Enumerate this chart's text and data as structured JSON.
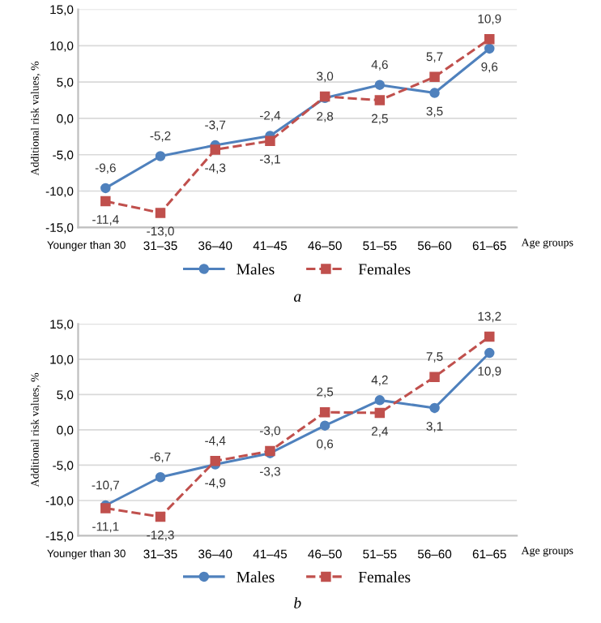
{
  "chart_data": [
    {
      "type": "line",
      "xlabel": "Age groups",
      "ylabel": "Additional risk values, %",
      "annotations": [
        "a"
      ],
      "categories": [
        "Younger than 30",
        "31–35",
        "36–40",
        "41–45",
        "46–50",
        "51–55",
        "56–60",
        "61–65"
      ],
      "series": [
        {
          "name": "Males",
          "color": "#4f81bd",
          "marker": "circle",
          "line_style": "solid",
          "values": [
            -9.6,
            -5.2,
            -3.7,
            -2.4,
            2.8,
            4.6,
            3.5,
            9.6
          ],
          "value_labels": [
            "-9,6",
            "-5,2",
            "-3,7",
            "-2,4",
            "2,8",
            "4,6",
            "3,5",
            "9,6"
          ]
        },
        {
          "name": "Females",
          "color": "#c0504d",
          "marker": "square",
          "line_style": "dashed",
          "values": [
            -11.4,
            -13.0,
            -4.3,
            -3.1,
            3.0,
            2.5,
            5.7,
            10.9
          ],
          "value_labels": [
            "-11,4",
            "-13,0",
            "-4,3",
            "-3,1",
            "3,0",
            "2,5",
            "5,7",
            "10,9"
          ]
        }
      ],
      "ylim": [
        -15,
        15
      ],
      "yticks": [
        {
          "value": -15,
          "label": "-15,0"
        },
        {
          "value": -10,
          "label": "-10,0"
        },
        {
          "value": -5,
          "label": "-5,0"
        },
        {
          "value": 0,
          "label": "0,0"
        },
        {
          "value": 5,
          "label": "5,0"
        },
        {
          "value": 10,
          "label": "10,0"
        },
        {
          "value": 15,
          "label": "15,0"
        }
      ],
      "grid": "y",
      "legend": "bottom"
    },
    {
      "type": "line",
      "xlabel": "Age groups",
      "ylabel": "Additional risk values, %",
      "annotations": [
        "b"
      ],
      "categories": [
        "Younger than 30",
        "31–35",
        "36–40",
        "41–45",
        "46–50",
        "51–55",
        "56–60",
        "61–65"
      ],
      "series": [
        {
          "name": "Males",
          "color": "#4f81bd",
          "marker": "circle",
          "line_style": "solid",
          "values": [
            -10.7,
            -6.7,
            -4.9,
            -3.3,
            0.6,
            4.2,
            3.1,
            10.9
          ],
          "value_labels": [
            "-10,7",
            "-6,7",
            "-4,9",
            "-3,3",
            "0,6",
            "4,2",
            "3,1",
            "10,9"
          ]
        },
        {
          "name": "Females",
          "color": "#c0504d",
          "marker": "square",
          "line_style": "dashed",
          "values": [
            -11.1,
            -12.3,
            -4.4,
            -3.0,
            2.5,
            2.4,
            7.5,
            13.2
          ],
          "value_labels": [
            "-11,1",
            "-12,3",
            "-4,4",
            "-3,0",
            "2,5",
            "2,4",
            "7,5",
            "13,2"
          ]
        }
      ],
      "ylim": [
        -15,
        15
      ],
      "yticks": [
        {
          "value": -15,
          "label": "-15,0"
        },
        {
          "value": -10,
          "label": "-10,0"
        },
        {
          "value": -5,
          "label": "-5,0"
        },
        {
          "value": 0,
          "label": "0,0"
        },
        {
          "value": 5,
          "label": "5,0"
        },
        {
          "value": 10,
          "label": "10,0"
        },
        {
          "value": 15,
          "label": "15,0"
        }
      ],
      "grid": "y",
      "legend": "bottom"
    }
  ]
}
